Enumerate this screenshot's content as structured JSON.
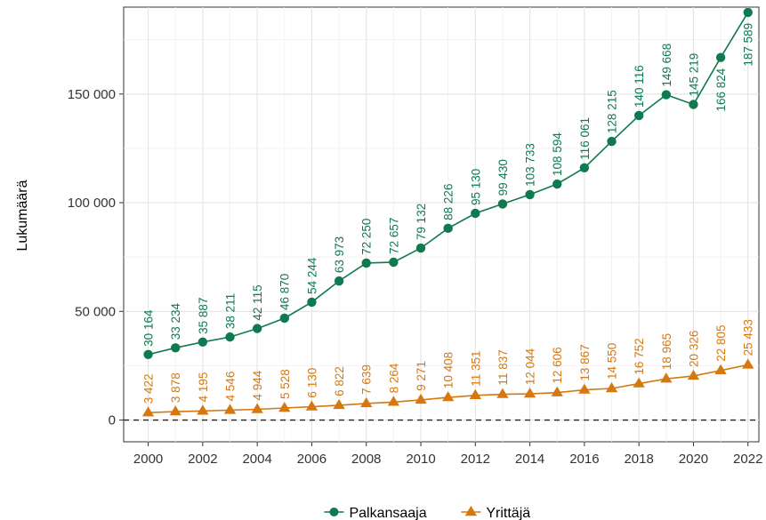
{
  "chart_data": {
    "type": "line",
    "ylabel": "Lukumäärä",
    "xlabel": "",
    "x": [
      2000,
      2001,
      2002,
      2003,
      2004,
      2005,
      2006,
      2007,
      2008,
      2009,
      2010,
      2011,
      2012,
      2013,
      2014,
      2015,
      2016,
      2017,
      2018,
      2019,
      2020,
      2021,
      2022
    ],
    "x_ticks": [
      "2000",
      "2002",
      "2004",
      "2006",
      "2008",
      "2010",
      "2012",
      "2014",
      "2016",
      "2018",
      "2020",
      "2022"
    ],
    "y_ticks": [
      "0",
      "50 000",
      "100 000",
      "150 000"
    ],
    "ylim": [
      -10000,
      190000
    ],
    "xlim": [
      1999.1,
      2022.4
    ],
    "reference_line": {
      "y": 0,
      "style": "dashed"
    },
    "grid": true,
    "legend_position": "bottom",
    "series": [
      {
        "name": "Palkansaaja",
        "color": "#0f7a50",
        "marker": "circle",
        "values": [
          30164,
          33234,
          35887,
          38211,
          42115,
          46870,
          54244,
          63973,
          72250,
          72657,
          79132,
          88226,
          95130,
          99430,
          103733,
          108594,
          116061,
          128215,
          140116,
          149668,
          145219,
          166824,
          187589
        ],
        "labels": [
          "30 164",
          "33 234",
          "35 887",
          "38 211",
          "42 115",
          "46 870",
          "54 244",
          "63 973",
          "72 250",
          "72 657",
          "79 132",
          "88 226",
          "95 130",
          "99 430",
          "103 733",
          "108 594",
          "116 061",
          "128 215",
          "140 116",
          "149 668",
          "145 219",
          "166 824",
          "187 589"
        ]
      },
      {
        "name": "Yrittäjä",
        "color": "#d6780f",
        "marker": "triangle",
        "values": [
          3422,
          3878,
          4195,
          4546,
          4944,
          5528,
          6130,
          6822,
          7639,
          8264,
          9271,
          10408,
          11351,
          11837,
          12044,
          12606,
          13867,
          14550,
          16752,
          18965,
          20326,
          22805,
          25433
        ],
        "labels": [
          "3 422",
          "3 878",
          "4 195",
          "4 546",
          "4 944",
          "5 528",
          "6 130",
          "6 822",
          "7 639",
          "8 264",
          "9 271",
          "10 408",
          "11 351",
          "11 837",
          "12 044",
          "12 606",
          "13 867",
          "14 550",
          "16 752",
          "18 965",
          "20 326",
          "22 805",
          "25 433"
        ]
      }
    ]
  }
}
